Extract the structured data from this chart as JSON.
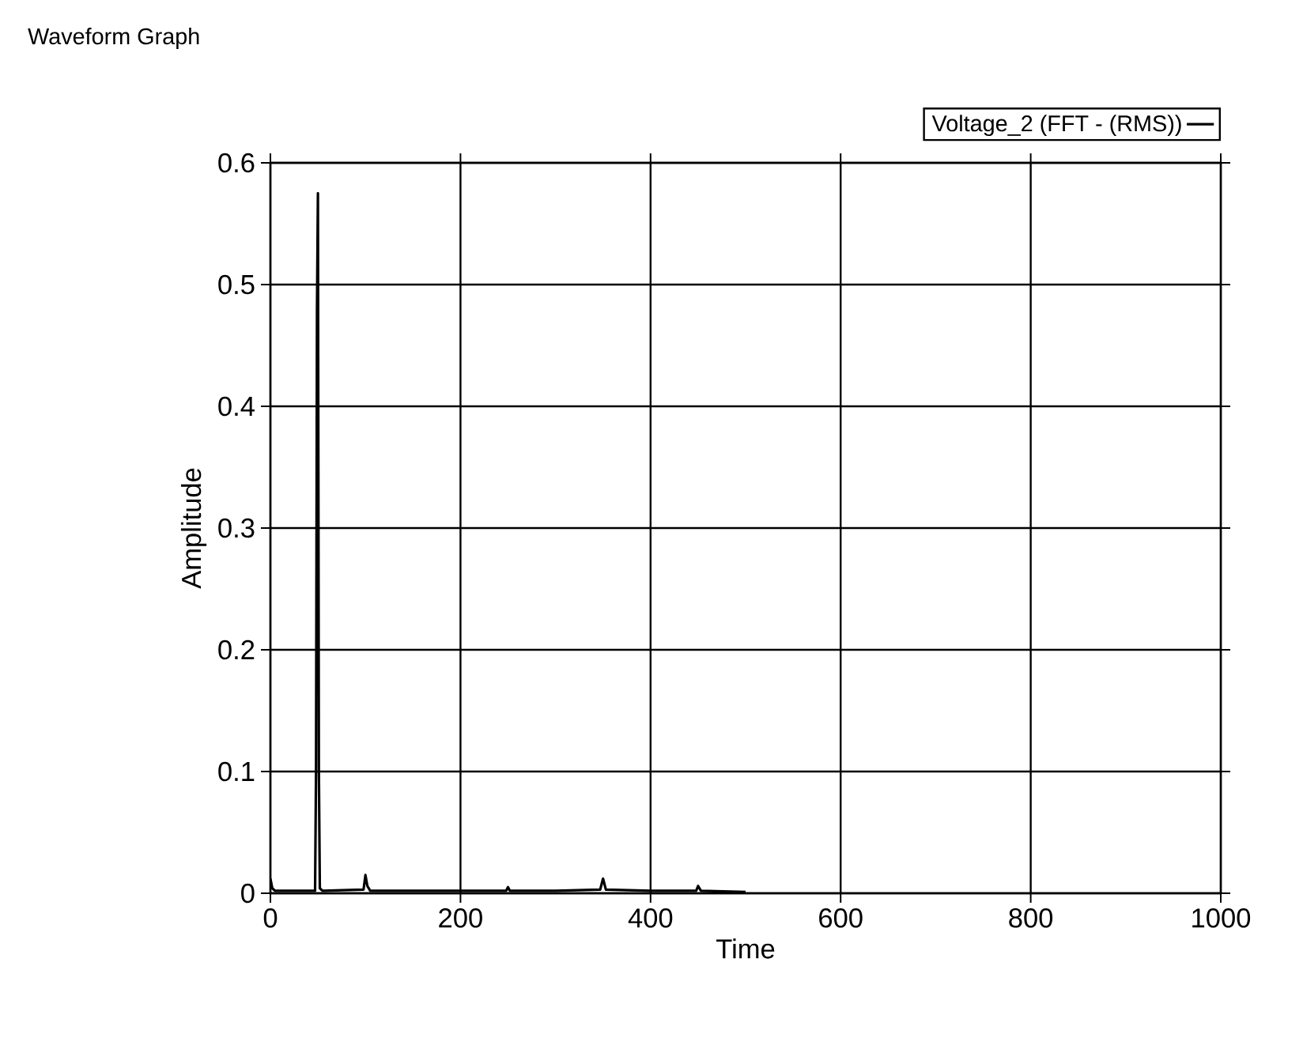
{
  "chart_data": {
    "type": "line",
    "title": "Waveform Graph",
    "xlabel": "Time",
    "ylabel": "Amplitude",
    "xlim": [
      0,
      1000
    ],
    "ylim": [
      0,
      0.6
    ],
    "xticks": [
      0,
      200,
      400,
      600,
      800,
      1000
    ],
    "yticks": [
      0,
      0.1,
      0.2,
      0.3,
      0.4,
      0.5,
      0.6
    ],
    "grid": true,
    "legend": "top right",
    "marker": "none",
    "line_style": "solid",
    "series": [
      {
        "name": "Voltage_2 (FFT - (RMS))",
        "color": "#000000",
        "x": [
          0,
          2,
          5,
          47,
          48,
          49,
          50,
          51,
          52,
          55,
          98,
          100,
          102,
          105,
          200,
          248,
          250,
          252,
          300,
          347,
          350,
          353,
          400,
          448,
          450,
          453,
          500
        ],
        "values": [
          0.012,
          0.004,
          0.002,
          0.002,
          0.1,
          0.48,
          0.575,
          0.1,
          0.004,
          0.002,
          0.003,
          0.015,
          0.006,
          0.002,
          0.002,
          0.002,
          0.005,
          0.002,
          0.002,
          0.003,
          0.012,
          0.003,
          0.002,
          0.002,
          0.006,
          0.002,
          0.001
        ]
      }
    ]
  }
}
